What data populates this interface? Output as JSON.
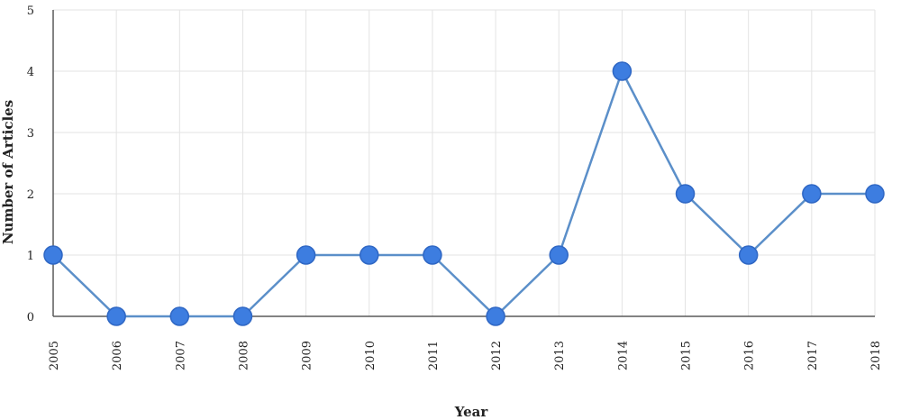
{
  "chart_data": {
    "type": "line",
    "x": [
      "2005",
      "2006",
      "2007",
      "2008",
      "2009",
      "2010",
      "2011",
      "2012",
      "2013",
      "2014",
      "2015",
      "2016",
      "2017",
      "2018"
    ],
    "series": [
      {
        "values": [
          1,
          0,
          0,
          0,
          1,
          1,
          1,
          0,
          1,
          4,
          2,
          1,
          2,
          2
        ]
      }
    ],
    "xlabel": "Year",
    "ylabel": "Number of Articles",
    "ylim": [
      0,
      5
    ],
    "yticks": [
      "0",
      "1",
      "2",
      "3",
      "4",
      "5"
    ],
    "grid": true,
    "colors": {
      "line": "#5b8fc9",
      "marker": "#3d7de0",
      "marker_edge": "#2f67c4"
    }
  }
}
